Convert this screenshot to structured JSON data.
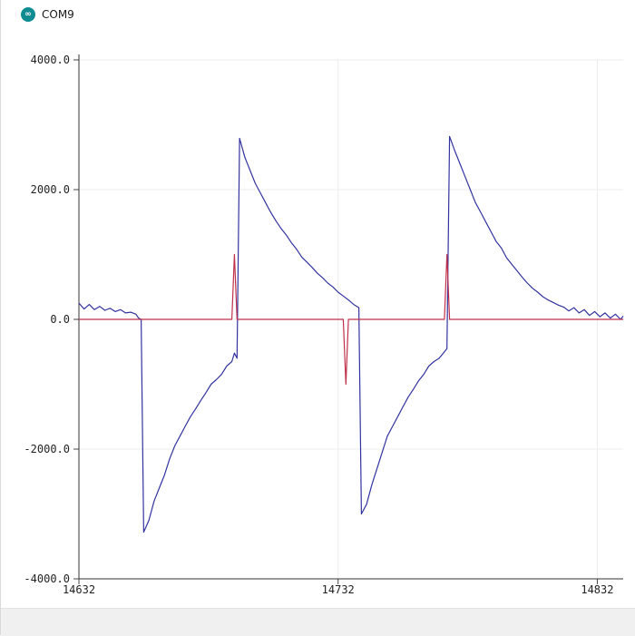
{
  "window": {
    "title": "COM9",
    "icon": "arduino-icon",
    "icon_glyph": "∞"
  },
  "chart_data": {
    "type": "line",
    "title": "",
    "xlabel": "",
    "ylabel": "",
    "ylim": [
      -4000,
      4000
    ],
    "xlim": [
      14632,
      14842
    ],
    "y_ticks": [
      {
        "value": 4000,
        "label": "4000.0"
      },
      {
        "value": 2000,
        "label": "2000.0"
      },
      {
        "value": 0,
        "label": "0.0"
      },
      {
        "value": -2000,
        "label": "-2000.0"
      },
      {
        "value": -4000,
        "label": "-4000.0"
      }
    ],
    "x_ticks": [
      {
        "value": 14632,
        "label": "14632"
      },
      {
        "value": 14732,
        "label": "14732"
      },
      {
        "value": 14832,
        "label": "14832"
      }
    ],
    "grid": true,
    "legend": "none",
    "series": [
      {
        "color": "#3333a0",
        "points": [
          [
            14632,
            250
          ],
          [
            14634,
            160
          ],
          [
            14636,
            230
          ],
          [
            14638,
            150
          ],
          [
            14640,
            200
          ],
          [
            14642,
            140
          ],
          [
            14644,
            170
          ],
          [
            14646,
            120
          ],
          [
            14648,
            150
          ],
          [
            14650,
            100
          ],
          [
            14652,
            110
          ],
          [
            14654,
            80
          ],
          [
            14655,
            20
          ],
          [
            14656,
            0
          ],
          [
            14657,
            -3280
          ],
          [
            14659,
            -3100
          ],
          [
            14661,
            -2800
          ],
          [
            14663,
            -2600
          ],
          [
            14665,
            -2400
          ],
          [
            14667,
            -2150
          ],
          [
            14669,
            -1950
          ],
          [
            14671,
            -1800
          ],
          [
            14673,
            -1650
          ],
          [
            14675,
            -1500
          ],
          [
            14677,
            -1380
          ],
          [
            14679,
            -1250
          ],
          [
            14681,
            -1130
          ],
          [
            14683,
            -1000
          ],
          [
            14685,
            -930
          ],
          [
            14687,
            -850
          ],
          [
            14689,
            -720
          ],
          [
            14691,
            -650
          ],
          [
            14692,
            -520
          ],
          [
            14693,
            -600
          ],
          [
            14694,
            2790
          ],
          [
            14696,
            2500
          ],
          [
            14698,
            2300
          ],
          [
            14700,
            2100
          ],
          [
            14702,
            1950
          ],
          [
            14704,
            1800
          ],
          [
            14706,
            1650
          ],
          [
            14708,
            1520
          ],
          [
            14710,
            1400
          ],
          [
            14712,
            1300
          ],
          [
            14714,
            1180
          ],
          [
            14716,
            1080
          ],
          [
            14718,
            960
          ],
          [
            14720,
            880
          ],
          [
            14722,
            800
          ],
          [
            14724,
            710
          ],
          [
            14726,
            640
          ],
          [
            14728,
            560
          ],
          [
            14730,
            500
          ],
          [
            14732,
            420
          ],
          [
            14734,
            360
          ],
          [
            14736,
            300
          ],
          [
            14738,
            230
          ],
          [
            14740,
            180
          ],
          [
            14741,
            -3000
          ],
          [
            14743,
            -2850
          ],
          [
            14745,
            -2550
          ],
          [
            14747,
            -2300
          ],
          [
            14749,
            -2050
          ],
          [
            14751,
            -1800
          ],
          [
            14753,
            -1650
          ],
          [
            14755,
            -1500
          ],
          [
            14757,
            -1350
          ],
          [
            14759,
            -1200
          ],
          [
            14761,
            -1080
          ],
          [
            14763,
            -950
          ],
          [
            14765,
            -850
          ],
          [
            14767,
            -720
          ],
          [
            14769,
            -650
          ],
          [
            14771,
            -600
          ],
          [
            14773,
            -500
          ],
          [
            14774,
            -450
          ],
          [
            14775,
            2820
          ],
          [
            14777,
            2600
          ],
          [
            14779,
            2400
          ],
          [
            14781,
            2200
          ],
          [
            14783,
            2000
          ],
          [
            14785,
            1800
          ],
          [
            14787,
            1650
          ],
          [
            14789,
            1500
          ],
          [
            14791,
            1350
          ],
          [
            14793,
            1200
          ],
          [
            14795,
            1100
          ],
          [
            14797,
            950
          ],
          [
            14799,
            850
          ],
          [
            14801,
            750
          ],
          [
            14803,
            650
          ],
          [
            14805,
            560
          ],
          [
            14807,
            480
          ],
          [
            14809,
            420
          ],
          [
            14811,
            350
          ],
          [
            14813,
            300
          ],
          [
            14815,
            260
          ],
          [
            14817,
            220
          ],
          [
            14819,
            190
          ],
          [
            14821,
            130
          ],
          [
            14823,
            180
          ],
          [
            14825,
            100
          ],
          [
            14827,
            150
          ],
          [
            14829,
            60
          ],
          [
            14831,
            120
          ],
          [
            14833,
            40
          ],
          [
            14835,
            100
          ],
          [
            14837,
            20
          ],
          [
            14839,
            80
          ],
          [
            14841,
            0
          ],
          [
            14842,
            50
          ]
        ]
      },
      {
        "color": "#c0304a",
        "points": [
          [
            14632,
            0
          ],
          [
            14691,
            0
          ],
          [
            14692,
            1000
          ],
          [
            14693,
            0
          ],
          [
            14734,
            0
          ],
          [
            14735,
            -1000
          ],
          [
            14736,
            0
          ],
          [
            14773,
            0
          ],
          [
            14774,
            1000
          ],
          [
            14775,
            0
          ],
          [
            14842,
            0
          ]
        ]
      }
    ]
  }
}
